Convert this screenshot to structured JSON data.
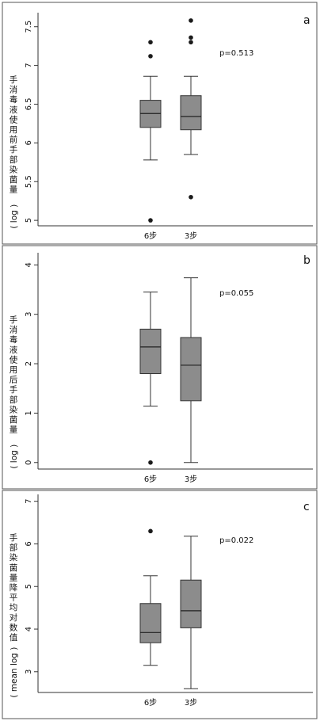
{
  "chart_data": [
    {
      "type": "box",
      "panel_label": "a",
      "ylabel_chars": [
        "手",
        "消",
        "毒",
        "液",
        "使",
        "用",
        "前",
        "手",
        "部",
        "染",
        "菌",
        "量"
      ],
      "ylabel_latin": "( log )",
      "annotation": "p=0.513",
      "categories": [
        "6步",
        "3步"
      ],
      "ylim": [
        4.95,
        7.62
      ],
      "yticks": [
        5,
        5.5,
        6,
        6.5,
        7,
        7.5
      ],
      "ytick_labels": [
        "5",
        "5.5",
        "6",
        "6.5",
        "7",
        "7.5"
      ],
      "boxes": [
        {
          "whisker_low": 5.78,
          "q1": 6.2,
          "median": 6.38,
          "q3": 6.55,
          "whisker_high": 6.86,
          "outliers": [
            5.0,
            7.12,
            7.3
          ]
        },
        {
          "whisker_low": 5.85,
          "q1": 6.17,
          "median": 6.34,
          "q3": 6.61,
          "whisker_high": 6.86,
          "outliers": [
            5.3,
            7.3,
            7.36,
            7.58
          ]
        }
      ]
    },
    {
      "type": "box",
      "panel_label": "b",
      "ylabel_chars": [
        "手",
        "消",
        "毒",
        "液",
        "使",
        "用",
        "后",
        "手",
        "部",
        "染",
        "菌",
        "量"
      ],
      "ylabel_latin": "( log )",
      "annotation": "p=0.055",
      "categories": [
        "6步",
        "3步"
      ],
      "ylim": [
        -0.1,
        4.15
      ],
      "yticks": [
        0,
        1,
        2,
        3,
        4
      ],
      "ytick_labels": [
        "0",
        "1",
        "2",
        "3",
        "4"
      ],
      "boxes": [
        {
          "whisker_low": 1.14,
          "q1": 1.8,
          "median": 2.34,
          "q3": 2.7,
          "whisker_high": 3.45,
          "outliers": [
            0.0
          ]
        },
        {
          "whisker_low": 0.0,
          "q1": 1.25,
          "median": 1.97,
          "q3": 2.53,
          "whisker_high": 3.74,
          "outliers": []
        }
      ]
    },
    {
      "type": "box",
      "panel_label": "c",
      "ylabel_chars": [
        "手",
        "部",
        "染",
        "菌",
        "量",
        "降",
        "平",
        "均",
        "对",
        "数",
        "值"
      ],
      "ylabel_latin": "( mean log )",
      "annotation": "p=0.022",
      "categories": [
        "6步",
        "3步"
      ],
      "ylim": [
        2.55,
        7.05
      ],
      "yticks": [
        3,
        4,
        5,
        6,
        7
      ],
      "ytick_labels": [
        "3",
        "4",
        "5",
        "6",
        "7"
      ],
      "boxes": [
        {
          "whisker_low": 3.15,
          "q1": 3.68,
          "median": 3.92,
          "q3": 4.6,
          "whisker_high": 5.25,
          "outliers": [
            6.3
          ]
        },
        {
          "whisker_low": 2.6,
          "q1": 4.03,
          "median": 4.43,
          "q3": 5.15,
          "whisker_high": 6.18,
          "outliers": []
        }
      ]
    }
  ]
}
